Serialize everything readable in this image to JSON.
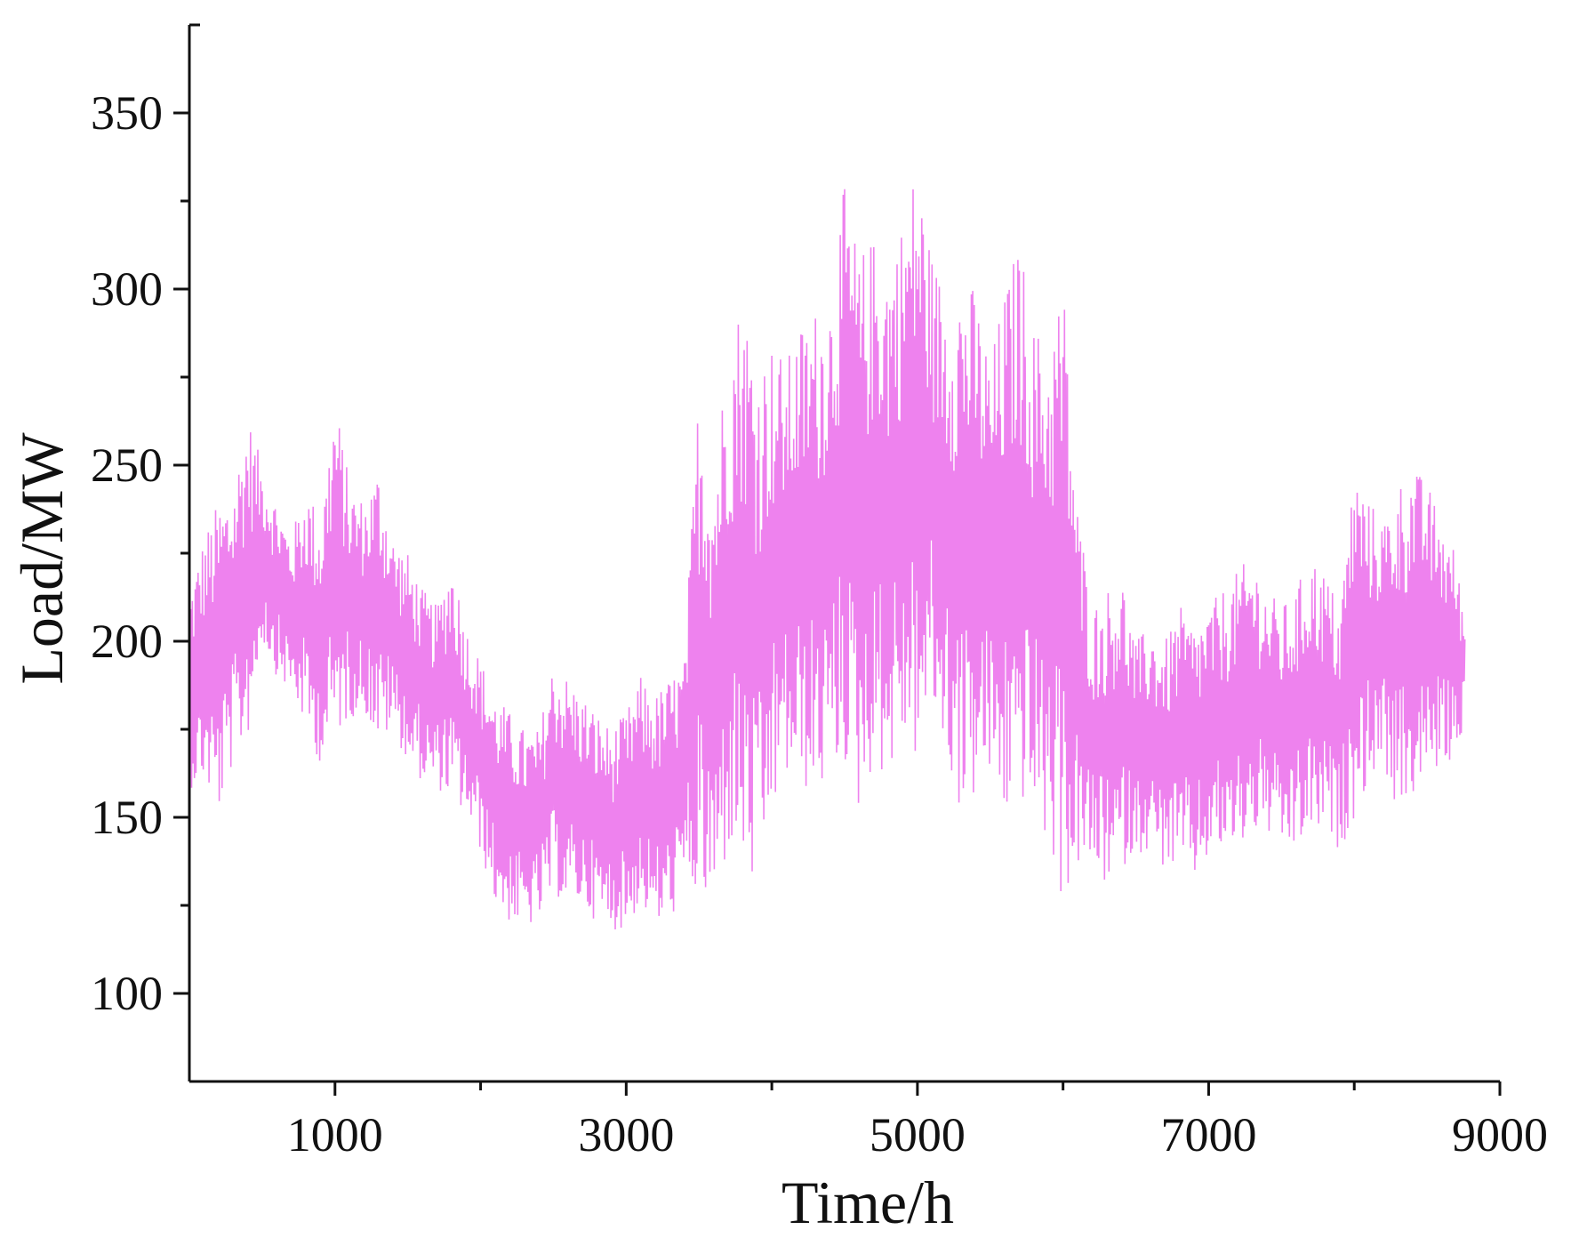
{
  "chart_data": {
    "type": "line",
    "title": "",
    "xlabel": "Time/h",
    "ylabel": "Load/MW",
    "xlim": [
      0,
      9000
    ],
    "ylim": [
      75,
      375
    ],
    "x_ticks": [
      1000,
      3000,
      5000,
      7000,
      9000
    ],
    "x_tick_labels": [
      "1000",
      "3000",
      "5000",
      "7000",
      "9000"
    ],
    "y_ticks": [
      100,
      150,
      200,
      250,
      300,
      350
    ],
    "y_tick_labels": [
      "100",
      "150",
      "200",
      "250",
      "300",
      "350"
    ],
    "grid": false,
    "legend": "none",
    "line_color": "#EE82EE",
    "series": [
      {
        "x": [
          0,
          100,
          200,
          300,
          400,
          500,
          600,
          700,
          800,
          900,
          1000,
          1100,
          1200,
          1300,
          1400,
          1500,
          1600,
          1700,
          1800,
          1900,
          2000,
          2100,
          2200,
          2300,
          2400,
          2500,
          2600,
          2700,
          2800,
          2900,
          3000,
          3100,
          3200,
          3300,
          3400,
          3500,
          3600,
          3700,
          3800,
          3900,
          4000,
          4100,
          4200,
          4300,
          4400,
          4500,
          4600,
          4700,
          4800,
          4900,
          5000,
          5100,
          5200,
          5300,
          5400,
          5500,
          5600,
          5700,
          5800,
          5900,
          6000,
          6100,
          6200,
          6300,
          6400,
          6500,
          6600,
          6700,
          6800,
          6900,
          7000,
          7100,
          7200,
          7300,
          7400,
          7500,
          7600,
          7700,
          7800,
          7900,
          8000,
          8100,
          8200,
          8300,
          8400,
          8500,
          8600,
          8700,
          8760
        ],
        "min": [
          158,
          160,
          150,
          165,
          172,
          200,
          190,
          185,
          175,
          165,
          172,
          178,
          180,
          170,
          175,
          165,
          160,
          158,
          155,
          150,
          140,
          125,
          120,
          118,
          120,
          128,
          125,
          125,
          120,
          118,
          118,
          125,
          118,
          120,
          130,
          125,
          120,
          140,
          135,
          125,
          150,
          160,
          158,
          155,
          160,
          165,
          150,
          165,
          160,
          170,
          165,
          180,
          165,
          150,
          155,
          160,
          148,
          155,
          150,
          140,
          125,
          135,
          135,
          130,
          135,
          140,
          140,
          135,
          135,
          132,
          138,
          140,
          140,
          145,
          145,
          140,
          140,
          145,
          145,
          140,
          150,
          160,
          165,
          150,
          155,
          160,
          165,
          165,
          180
        ],
        "max": [
          215,
          230,
          240,
          245,
          265,
          250,
          240,
          230,
          245,
          235,
          270,
          245,
          240,
          250,
          230,
          225,
          215,
          210,
          225,
          205,
          195,
          185,
          180,
          175,
          175,
          195,
          190,
          185,
          180,
          175,
          180,
          190,
          185,
          190,
          195,
          275,
          250,
          285,
          300,
          280,
          285,
          280,
          290,
          295,
          300,
          330,
          310,
          315,
          310,
          320,
          338,
          310,
          300,
          305,
          300,
          280,
          300,
          315,
          290,
          285,
          305,
          240,
          210,
          215,
          220,
          200,
          205,
          200,
          210,
          205,
          210,
          215,
          220,
          225,
          215,
          210,
          215,
          225,
          220,
          210,
          250,
          240,
          235,
          245,
          250,
          245,
          235,
          225,
          205
        ]
      }
    ]
  }
}
